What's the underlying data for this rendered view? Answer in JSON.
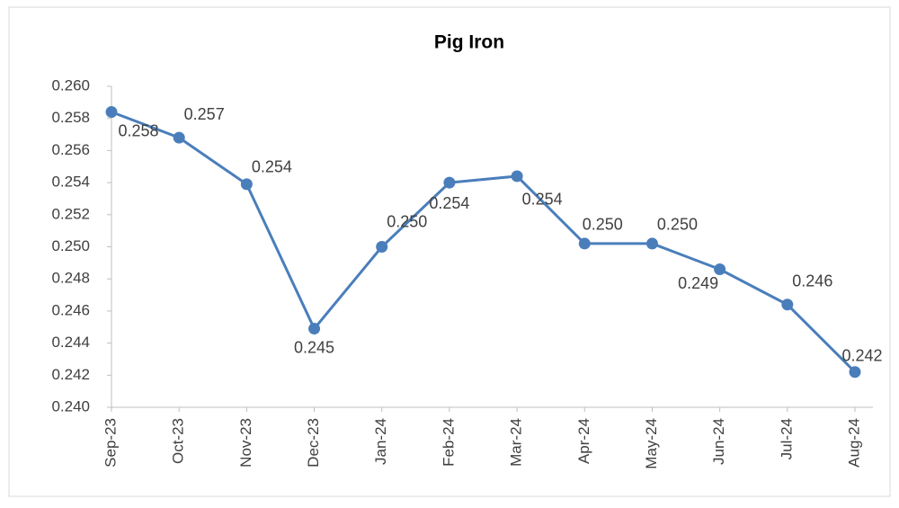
{
  "chart_data": {
    "type": "line",
    "title": "Pig Iron",
    "categories": [
      "Sep-23",
      "Oct-23",
      "Nov-23",
      "Dec-23",
      "Jan-24",
      "Feb-24",
      "Mar-24",
      "Apr-24",
      "May-24",
      "Jun-24",
      "Jul-24",
      "Aug-24"
    ],
    "series": [
      {
        "name": "Pig Iron",
        "color": "#4a7ebb",
        "values": [
          0.2584,
          0.2568,
          0.2539,
          0.2449,
          0.25,
          0.254,
          0.2544,
          0.2502,
          0.2502,
          0.2486,
          0.2464,
          0.2422
        ],
        "value_labels": [
          "0.258",
          "0.257",
          "0.254",
          "0.245",
          "0.250",
          "0.254",
          "0.254",
          "0.250",
          "0.250",
          "0.249",
          "0.246",
          "0.242"
        ]
      }
    ],
    "ylim": [
      0.24,
      0.26
    ],
    "yticks": [
      {
        "value": 0.24,
        "label": "0.240"
      },
      {
        "value": 0.242,
        "label": "0.242"
      },
      {
        "value": 0.244,
        "label": "0.244"
      },
      {
        "value": 0.246,
        "label": "0.246"
      },
      {
        "value": 0.248,
        "label": "0.248"
      },
      {
        "value": 0.25,
        "label": "0.250"
      },
      {
        "value": 0.252,
        "label": "0.252"
      },
      {
        "value": 0.254,
        "label": "0.254"
      },
      {
        "value": 0.256,
        "label": "0.256"
      },
      {
        "value": 0.258,
        "label": "0.258"
      },
      {
        "value": 0.26,
        "label": "0.260"
      }
    ],
    "grid": false
  }
}
